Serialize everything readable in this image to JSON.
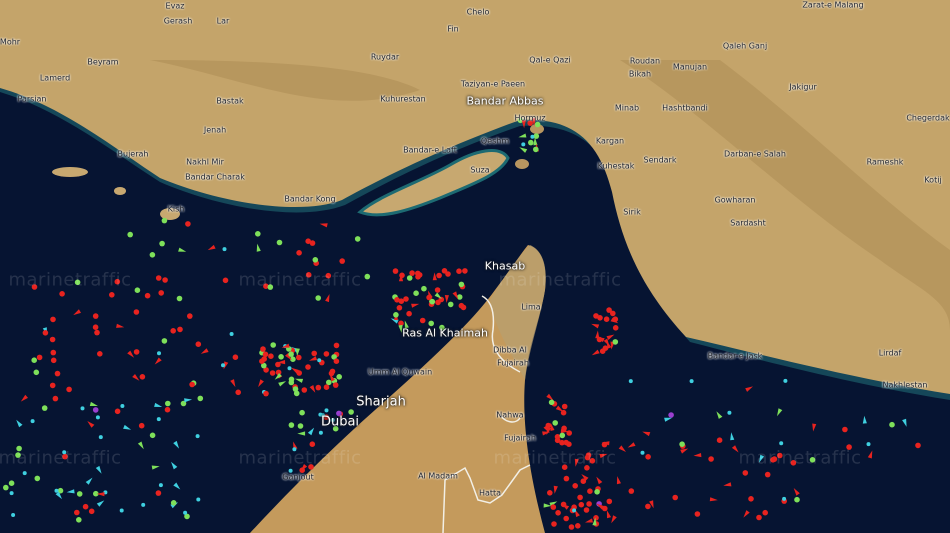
{
  "map": {
    "watermark": "marinetraffic",
    "colors": {
      "sea": "#061432",
      "land": "#c4a46a",
      "land_dark": "#a8874f",
      "shallow": "#1d5c6a",
      "border": "#f2efe6",
      "cargo": "#e8231f",
      "tanker": "#e8231f",
      "passenger": "#3fd0e0",
      "other": "#7ee05a",
      "pleasure": "#9b3fd0"
    },
    "labels": [
      "Evaz",
      "Gerash",
      "Lar",
      "Chelo",
      "Fin",
      "Mohr",
      "Beyram",
      "Lamerd",
      "Ruydar",
      "Qal-e Qazi",
      "Roudan",
      "Manujan",
      "Qaleh Ganj",
      "Zarat-e Malang",
      "Taziyan-e Paeen",
      "Bikah",
      "Parsian",
      "Bastak",
      "Kuhurestan",
      "Minab",
      "Hashtbandi",
      "Jenah",
      "Hormuz",
      "Bandar-e Laft",
      "Bujerah",
      "Qeshm",
      "Kargan",
      "Nakhl Mir",
      "Bandar Charak",
      "Kuhestak",
      "Sendark",
      "Darban-e Salah",
      "Bandar Kong",
      "Kish",
      "Suza",
      "Sirik",
      "Gowharan",
      "Sardasht",
      "Chegerdak",
      "Rameshk",
      "Kotij",
      "Jakigur",
      "Lima",
      "Dibba Al",
      "Fujairah",
      "Umm Al Quwain",
      "Nahwa",
      "Fujairah",
      "Bandar-e Jask",
      "Lirdaf",
      "Nakhlestan",
      "Ganjout",
      "Al Madam",
      "Hatta"
    ],
    "major_labels": [
      "Bandar Abbas",
      "Khasab",
      "Ras Al Khaimah",
      "Sharjah",
      "Dubai"
    ]
  }
}
